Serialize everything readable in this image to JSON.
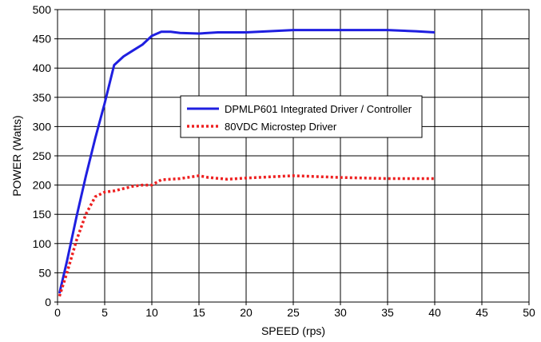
{
  "chart_data": {
    "type": "line",
    "xlabel": "SPEED (rps)",
    "ylabel": "POWER (Watts)",
    "xlim": [
      0,
      50
    ],
    "ylim": [
      0,
      500
    ],
    "xticks": [
      0,
      5,
      10,
      15,
      20,
      25,
      30,
      35,
      40,
      45,
      50
    ],
    "yticks": [
      0,
      50,
      100,
      150,
      200,
      250,
      300,
      350,
      400,
      450,
      500
    ],
    "grid": true,
    "legend_position": "center-right",
    "series": [
      {
        "name": "DPMLP601 Integrated Driver / Controller",
        "color": "#1f1fe0",
        "style": "solid",
        "x": [
          0.2,
          1,
          2,
          3,
          4,
          5,
          6,
          7,
          8,
          9,
          10,
          11,
          12,
          13,
          15,
          17,
          20,
          25,
          30,
          35,
          38,
          40
        ],
        "y": [
          15,
          70,
          145,
          215,
          280,
          340,
          405,
          420,
          430,
          440,
          455,
          462,
          462,
          460,
          459,
          461,
          461,
          465,
          465,
          465,
          463,
          461
        ]
      },
      {
        "name": "80VDC Microstep Driver",
        "color": "#ee2020",
        "style": "dotted",
        "x": [
          0.2,
          1,
          2,
          3,
          4,
          5,
          6,
          7,
          8,
          9,
          10,
          11,
          12,
          13,
          15,
          16,
          18,
          20,
          25,
          30,
          35,
          40
        ],
        "y": [
          10,
          50,
          105,
          150,
          180,
          188,
          190,
          194,
          198,
          200,
          200,
          209,
          210,
          211,
          216,
          213,
          210,
          212,
          216,
          213,
          211,
          211
        ]
      }
    ]
  }
}
